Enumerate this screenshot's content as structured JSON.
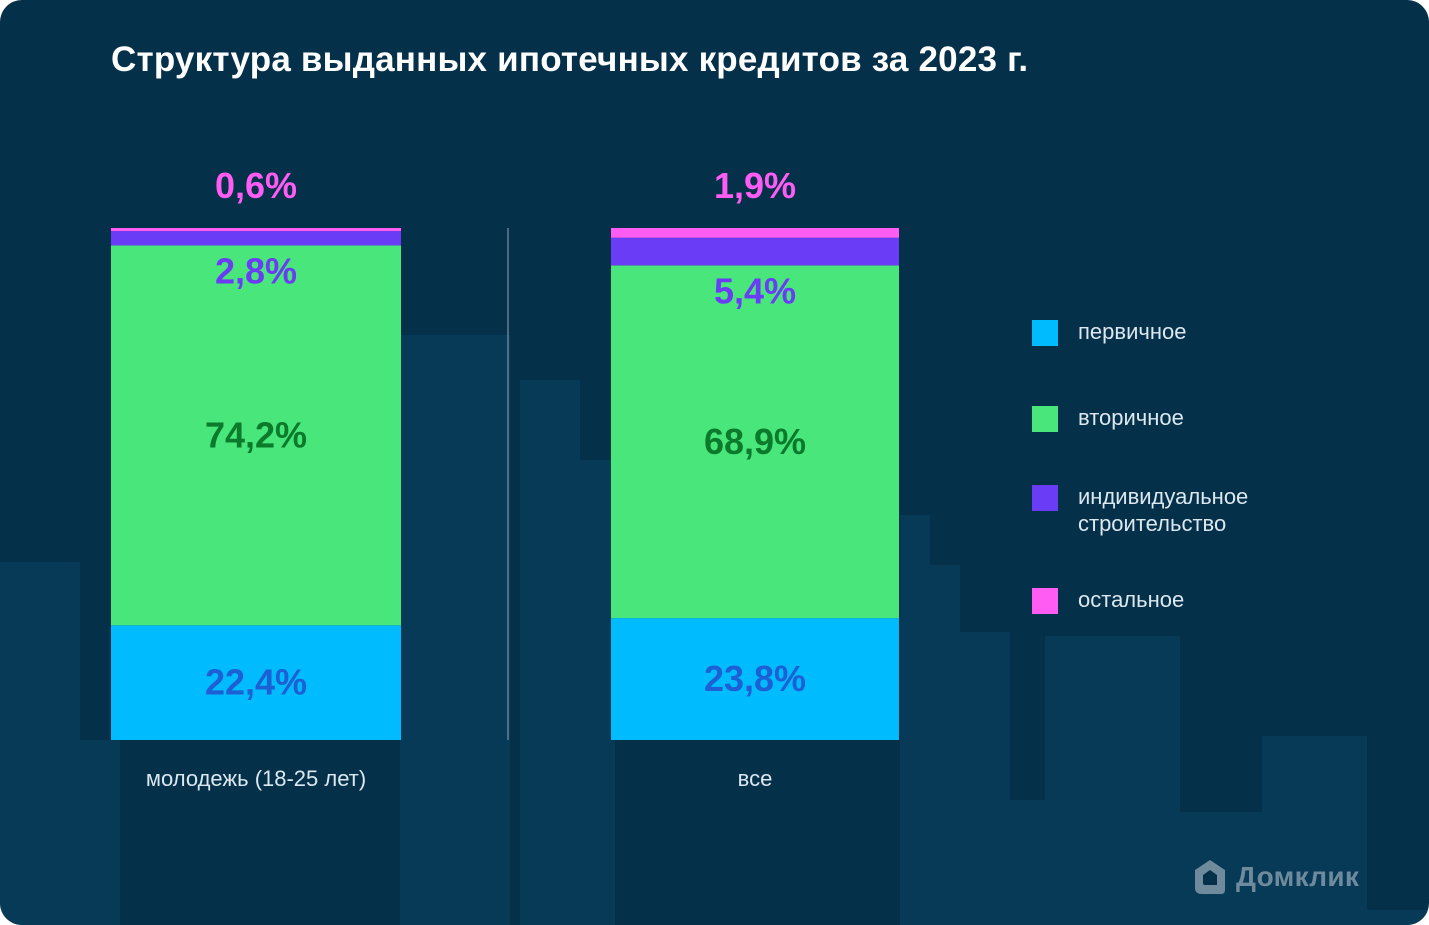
{
  "title": "Структура выданных ипотечных кредитов за 2023 г.",
  "colors": {
    "background": "#04304a",
    "buildings": "#073a57",
    "divider": "#7a93a4",
    "primary": "#00bcff",
    "secondary": "#49e67c",
    "individual": "#6b3cf6",
    "other": "#ff5cf4"
  },
  "chart_data": {
    "type": "bar",
    "stacked": true,
    "orientation": "vertical",
    "categories": [
      "молодежь (18-25 лет)",
      "все"
    ],
    "series": [
      {
        "name": "первичное",
        "color": "#00bcff",
        "label_color": "#1d5fd4",
        "values": [
          22.4,
          23.8
        ],
        "labels": [
          "22,4%",
          "23,8%"
        ]
      },
      {
        "name": "вторичное",
        "color": "#49e67c",
        "label_color": "#0b7a2a",
        "values": [
          74.2,
          68.9
        ],
        "labels": [
          "74,2%",
          "68,9%"
        ]
      },
      {
        "name": "индивидуальное строительство",
        "color": "#6b3cf6",
        "label_color": "#6b3cf6",
        "values": [
          2.8,
          5.4
        ],
        "labels": [
          "2,8%",
          "5,4%"
        ]
      },
      {
        "name": "остальное",
        "color": "#ff5cf4",
        "label_color": "#ff5cf4",
        "values": [
          0.6,
          1.9
        ],
        "labels": [
          "0,6%",
          "1,9%"
        ]
      }
    ],
    "ylim": [
      0,
      100
    ],
    "legend_position": "right"
  },
  "legend": [
    {
      "label": "первичное",
      "color": "#00bcff"
    },
    {
      "label": "вторичное",
      "color": "#49e67c"
    },
    {
      "label": "индивидуальное строительство",
      "color": "#6b3cf6"
    },
    {
      "label": "остальное",
      "color": "#ff5cf4"
    }
  ],
  "logo": {
    "text": "Домклик",
    "icon": "house-icon"
  }
}
